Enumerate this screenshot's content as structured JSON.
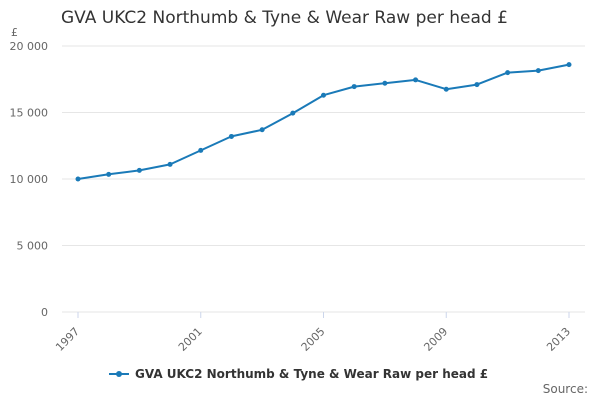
{
  "title": "GVA UKC2 Northumb & Tyne & Wear Raw per head £",
  "source_label": "Source:",
  "colors": {
    "series": "#1a7ab8",
    "grid": "#e6e6e6",
    "axis_text": "#666666"
  },
  "chart_data": {
    "type": "line",
    "title": "GVA UKC2 Northumb & Tyne & Wear Raw per head £",
    "ylabel": "£",
    "xlabel": "",
    "ylim": [
      0,
      20000
    ],
    "yticks": [
      0,
      5000,
      10000,
      15000,
      20000
    ],
    "ytick_labels": [
      "0",
      "5 000",
      "10 000",
      "15 000",
      "20 000"
    ],
    "xlim": [
      1997,
      2013
    ],
    "xticks": [
      1997,
      2001,
      2005,
      2009,
      2013
    ],
    "xtick_labels": [
      "1997",
      "2001",
      "2005",
      "2009",
      "2013"
    ],
    "grid": true,
    "legend_position": "bottom-center",
    "series": [
      {
        "name": "GVA UKC2 Northumb & Tyne & Wear Raw per head £",
        "x": [
          1997,
          1998,
          1999,
          2000,
          2001,
          2002,
          2003,
          2004,
          2005,
          2006,
          2007,
          2008,
          2009,
          2010,
          2011,
          2012,
          2013
        ],
        "values": [
          10000,
          10350,
          10650,
          11100,
          12150,
          13200,
          13700,
          14950,
          16300,
          16950,
          17200,
          17450,
          16750,
          17100,
          18000,
          18150,
          18600
        ]
      }
    ]
  }
}
